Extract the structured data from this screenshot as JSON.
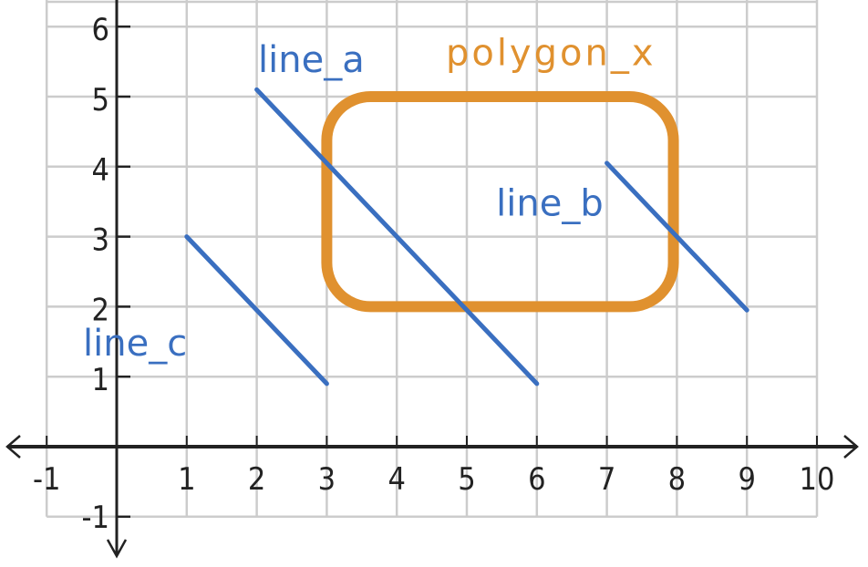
{
  "chart_data": {
    "type": "diagram",
    "grid": true,
    "xlim": [
      -1,
      10
    ],
    "ylim": [
      -1,
      6
    ],
    "x_ticks": [
      "-1",
      "1",
      "2",
      "3",
      "4",
      "5",
      "6",
      "7",
      "8",
      "9",
      "10"
    ],
    "y_ticks": [
      "-1",
      "1",
      "2",
      "3",
      "4",
      "5",
      "6"
    ],
    "colors": {
      "line": "#3a6fc0",
      "polygon": "#e0912f",
      "grid": "#cccccc",
      "axis": "#222222"
    },
    "lines": [
      {
        "name": "line_a",
        "from": [
          2,
          5.1
        ],
        "to": [
          6,
          0.9
        ],
        "label_at": [
          2.8,
          5.35
        ]
      },
      {
        "name": "line_b",
        "from": [
          7,
          4.05
        ],
        "to": [
          9,
          1.95
        ],
        "label_at": [
          6.2,
          3.3
        ]
      },
      {
        "name": "line_c",
        "from": [
          1,
          3
        ],
        "to": [
          3,
          0.9
        ],
        "label_at": [
          0.3,
          1.3
        ]
      }
    ],
    "polygons": [
      {
        "name": "polygon_x",
        "shape": "rounded-rectangle",
        "x_range": [
          3,
          7.95
        ],
        "y_range": [
          2,
          5
        ],
        "label_at": [
          4.7,
          5.45
        ]
      }
    ]
  }
}
